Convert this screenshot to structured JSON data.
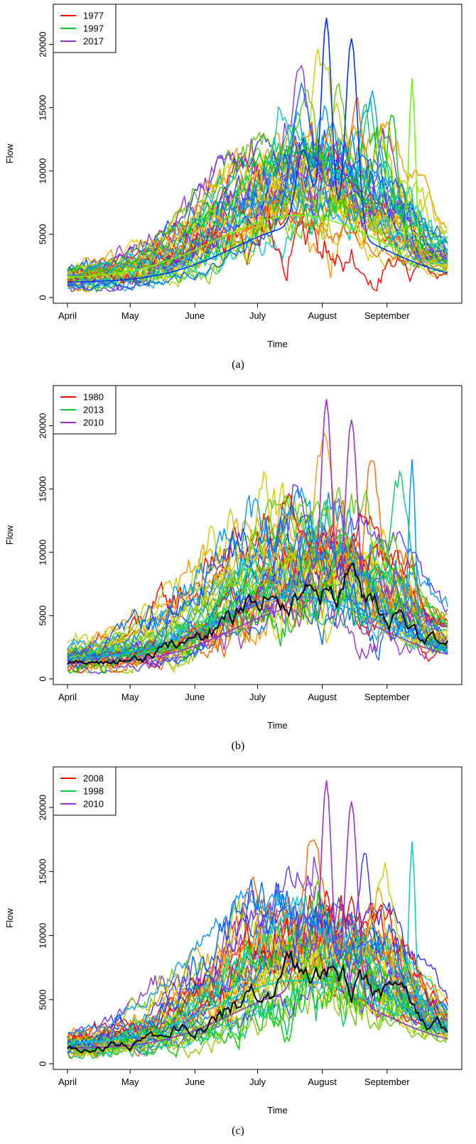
{
  "chart_data": [
    {
      "type": "line",
      "panel": "a",
      "caption": "(a)",
      "xlabel": "Time",
      "ylabel": "Flow",
      "x_ticks": [
        "April",
        "May",
        "June",
        "July",
        "August",
        "September"
      ],
      "y_ticks": [
        0,
        5000,
        10000,
        15000,
        20000
      ],
      "ylim": [
        0,
        22500
      ],
      "legend_position": "top-left",
      "grid": false,
      "legend": [
        {
          "name": "1977",
          "color": "#ff0000"
        },
        {
          "name": "1997",
          "color": "#00cc33"
        },
        {
          "name": "2017",
          "color": "#9933cc"
        }
      ],
      "highlight_series": null,
      "series_note": "Many overlapping daily flow series (one per year) in a rainbow palette; peak near 22500 in early August",
      "colors": [
        "#ff0000",
        "#ff6600",
        "#ff9900",
        "#ffcc00",
        "#cccc00",
        "#99cc00",
        "#66cc00",
        "#00cc00",
        "#00cc66",
        "#00cccc",
        "#0099ff",
        "#0066ff",
        "#3333ff",
        "#6633ff",
        "#9933cc"
      ]
    },
    {
      "type": "line",
      "panel": "b",
      "caption": "(b)",
      "xlabel": "Time",
      "ylabel": "Flow",
      "x_ticks": [
        "April",
        "May",
        "June",
        "July",
        "August",
        "September"
      ],
      "y_ticks": [
        0,
        5000,
        10000,
        15000,
        20000
      ],
      "ylim": [
        0,
        22500
      ],
      "legend_position": "top-left",
      "grid": false,
      "legend": [
        {
          "name": "1980",
          "color": "#ff0000"
        },
        {
          "name": "2013",
          "color": "#00cc33"
        },
        {
          "name": "2010",
          "color": "#9933cc"
        }
      ],
      "highlight_series": {
        "color": "#000000"
      },
      "colors": [
        "#ff0000",
        "#ff6600",
        "#ff9900",
        "#ffcc00",
        "#cccc00",
        "#99cc00",
        "#66cc00",
        "#00cc00",
        "#00cc66",
        "#00cccc",
        "#0099ff",
        "#0066ff",
        "#3333ff",
        "#6633ff",
        "#9933cc"
      ]
    },
    {
      "type": "line",
      "panel": "c",
      "caption": "(c)",
      "xlabel": "Time",
      "ylabel": "Flow",
      "x_ticks": [
        "April",
        "May",
        "June",
        "July",
        "August",
        "September"
      ],
      "y_ticks": [
        0,
        5000,
        10000,
        15000,
        20000
      ],
      "ylim": [
        0,
        22500
      ],
      "legend_position": "top-left",
      "grid": false,
      "legend": [
        {
          "name": "2008",
          "color": "#ff0000"
        },
        {
          "name": "1998",
          "color": "#00cc33"
        },
        {
          "name": "2010",
          "color": "#9933cc"
        }
      ],
      "highlight_series": {
        "color": "#000000"
      },
      "colors": [
        "#ff0000",
        "#ff6600",
        "#ff9900",
        "#ffcc00",
        "#cccc00",
        "#99cc00",
        "#66cc00",
        "#00cc00",
        "#00cc66",
        "#00cccc",
        "#0099ff",
        "#0066ff",
        "#3333ff",
        "#6633ff",
        "#9933cc"
      ]
    }
  ]
}
